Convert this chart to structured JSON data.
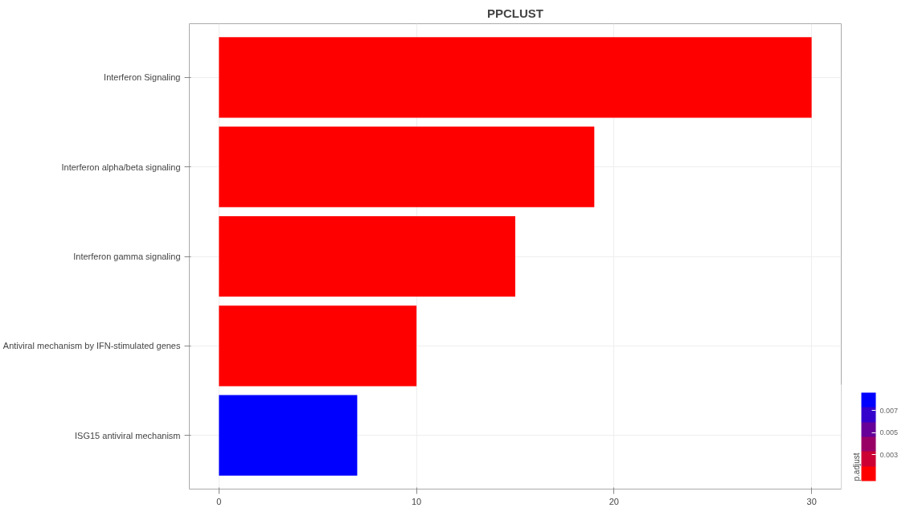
{
  "chart_data": {
    "type": "bar",
    "orientation": "horizontal",
    "title": "PPCLUST",
    "categories": [
      "Interferon Signaling",
      "Interferon alpha/beta signaling",
      "Interferon gamma signaling",
      "Antiviral mechanism by IFN-stimulated genes",
      "ISG15 antiviral mechanism"
    ],
    "values": [
      30,
      19,
      15,
      10,
      7
    ],
    "colors": [
      "#ff0000",
      "#ff0000",
      "#ff0000",
      "#ff0000",
      "#0000ff"
    ],
    "xlim": [
      -1.5,
      31.5
    ],
    "xticks": [
      0,
      10,
      20,
      30
    ],
    "grid": true,
    "clabel": "p.adjust",
    "clim": [
      0.0006,
      0.0086
    ],
    "cticks": [
      0.003,
      0.005,
      0.007
    ]
  }
}
